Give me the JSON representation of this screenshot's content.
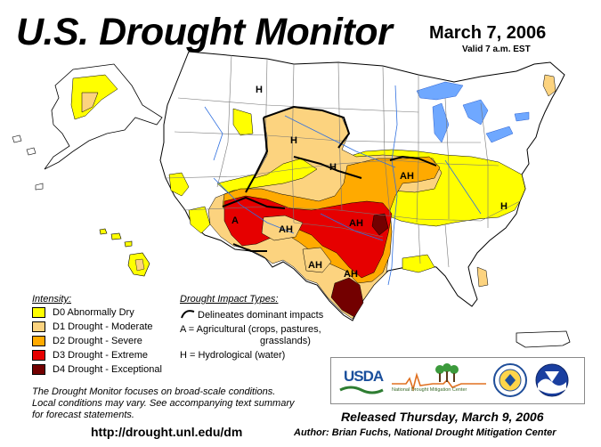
{
  "header": {
    "title": "U.S. Drought Monitor",
    "date": "March 7, 2006",
    "valid": "Valid 7 a.m. EST"
  },
  "colors": {
    "D0": "#ffff00",
    "D1": "#fcd37f",
    "D2": "#ffaa00",
    "D3": "#e60000",
    "D4": "#730000",
    "water": "#6fa8ff",
    "boundary": "#000000"
  },
  "legend": {
    "heading": "Intensity:",
    "items": [
      {
        "code": "D0",
        "label": "D0 Abnormally Dry",
        "color": "#ffff00"
      },
      {
        "code": "D1",
        "label": "D1 Drought - Moderate",
        "color": "#fcd37f"
      },
      {
        "code": "D2",
        "label": "D2 Drought - Severe",
        "color": "#ffaa00"
      },
      {
        "code": "D3",
        "label": "D3 Drought - Extreme",
        "color": "#e60000"
      },
      {
        "code": "D4",
        "label": "D4 Drought - Exceptional",
        "color": "#730000"
      }
    ]
  },
  "impacts": {
    "heading": "Drought Impact Types:",
    "line_symbol": "Delineates dominant impacts",
    "agri_1": "A = Agricultural (crops, pastures,",
    "agri_2": "grasslands)",
    "hydro": "H = Hydrological (water)"
  },
  "map_labels": [
    {
      "text": "H",
      "region": "Montana"
    },
    {
      "text": "H",
      "region": "Wyoming"
    },
    {
      "text": "H",
      "region": "Nebraska"
    },
    {
      "text": "AH",
      "region": "Missouri"
    },
    {
      "text": "A",
      "region": "Arizona"
    },
    {
      "text": "AH",
      "region": "New Mexico"
    },
    {
      "text": "AH",
      "region": "Oklahoma"
    },
    {
      "text": "AH",
      "region": "West Texas"
    },
    {
      "text": "AH",
      "region": "East Texas"
    },
    {
      "text": "H",
      "region": "Virginia"
    }
  ],
  "note": {
    "line1": "The Drought Monitor focuses on broad-scale conditions.",
    "line2": "Local conditions may vary.  See accompanying text summary",
    "line3": "for forecast statements."
  },
  "footer": {
    "url": "http://drought.unl.edu/dm",
    "released": "Released Thursday, March 9, 2006",
    "author": "Author: Brian Fuchs, National Drought Mitigation Center"
  },
  "logos": {
    "usda": "USDA",
    "ndmc": "National Drought Mitigation Center"
  }
}
